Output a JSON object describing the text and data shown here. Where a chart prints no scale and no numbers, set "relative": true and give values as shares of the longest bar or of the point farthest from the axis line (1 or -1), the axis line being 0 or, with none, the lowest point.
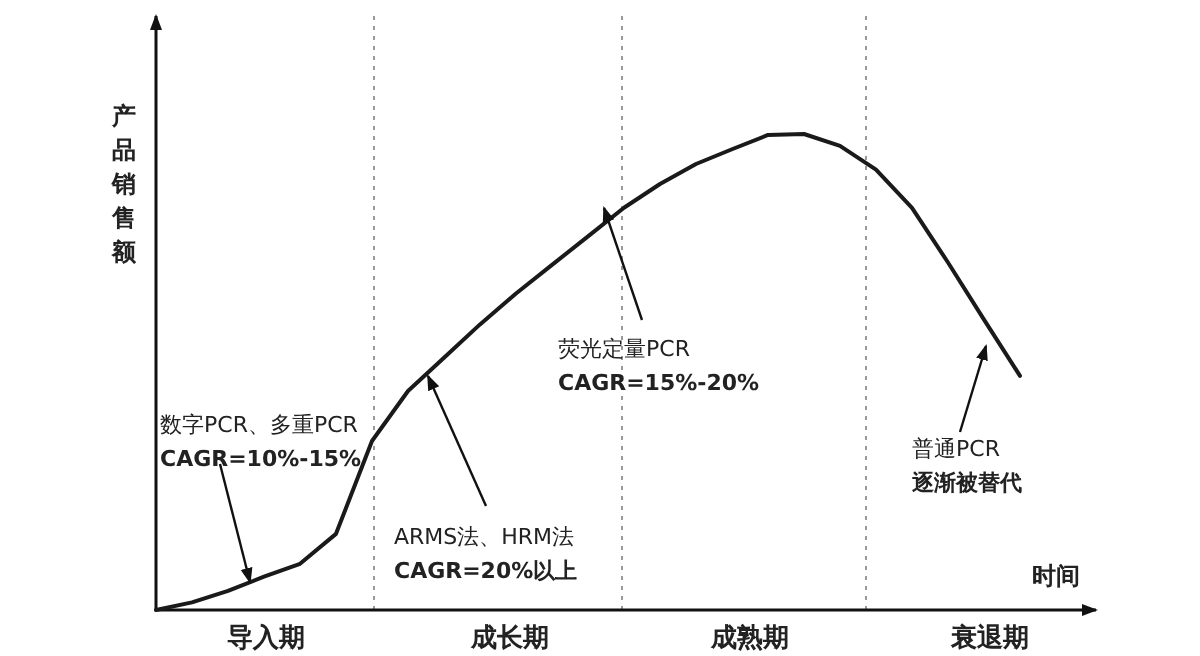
{
  "chart_data": {
    "type": "line",
    "relative": true,
    "ylabel": "产品销售额",
    "xlabel": "时间",
    "marker": "none",
    "line_style": "solid",
    "grid": false,
    "categories": [
      null,
      null,
      null,
      null,
      null,
      null,
      null,
      null,
      null,
      null,
      null,
      null,
      null,
      null,
      null,
      null,
      null,
      null,
      null,
      null,
      null,
      null,
      null,
      null,
      null
    ],
    "series": [
      {
        "color": "#1a1a1a",
        "values": [
          0,
          0.016,
          0.04,
          0.07,
          0.097,
          0.16,
          0.355,
          0.46,
          0.53,
          0.6,
          0.665,
          0.725,
          0.785,
          0.845,
          0.895,
          0.937,
          0.968,
          0.998,
          1,
          0.975,
          0.925,
          0.845,
          0.73,
          0.61,
          0.492
        ]
      }
    ],
    "annotations": [
      "导入期",
      "成长期",
      "成熟期",
      "衰退期",
      "数字PCR、多重PCR\nCAGR=10%-15%",
      "ARMS法、HRM法\nCAGR=20%以上",
      "荧光定量PCR\nCAGR=15%-20%",
      "普通PCR\n逐渐被替代"
    ]
  }
}
